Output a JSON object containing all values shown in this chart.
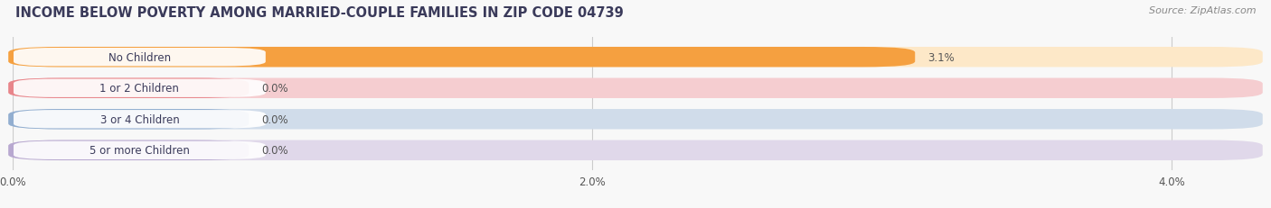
{
  "title": "INCOME BELOW POVERTY AMONG MARRIED-COUPLE FAMILIES IN ZIP CODE 04739",
  "source": "Source: ZipAtlas.com",
  "categories": [
    "No Children",
    "1 or 2 Children",
    "3 or 4 Children",
    "5 or more Children"
  ],
  "values": [
    3.1,
    0.0,
    0.0,
    0.0
  ],
  "bar_colors": [
    "#f5a040",
    "#e8858a",
    "#92aed0",
    "#b8a8d0"
  ],
  "bar_bg_colors": [
    "#fde8c8",
    "#f5cdd0",
    "#d0dcea",
    "#e0d8ea"
  ],
  "xlim_max": 4.3,
  "xticks": [
    0.0,
    2.0,
    4.0
  ],
  "xtick_labels": [
    "0.0%",
    "2.0%",
    "4.0%"
  ],
  "bar_height": 0.62,
  "pill_display_value": 0.8,
  "title_fontsize": 10.5,
  "source_fontsize": 8,
  "label_fontsize": 8.5,
  "value_fontsize": 8.5,
  "background_color": "#f8f8f8",
  "title_color": "#3a3a5a",
  "text_color": "#555555"
}
